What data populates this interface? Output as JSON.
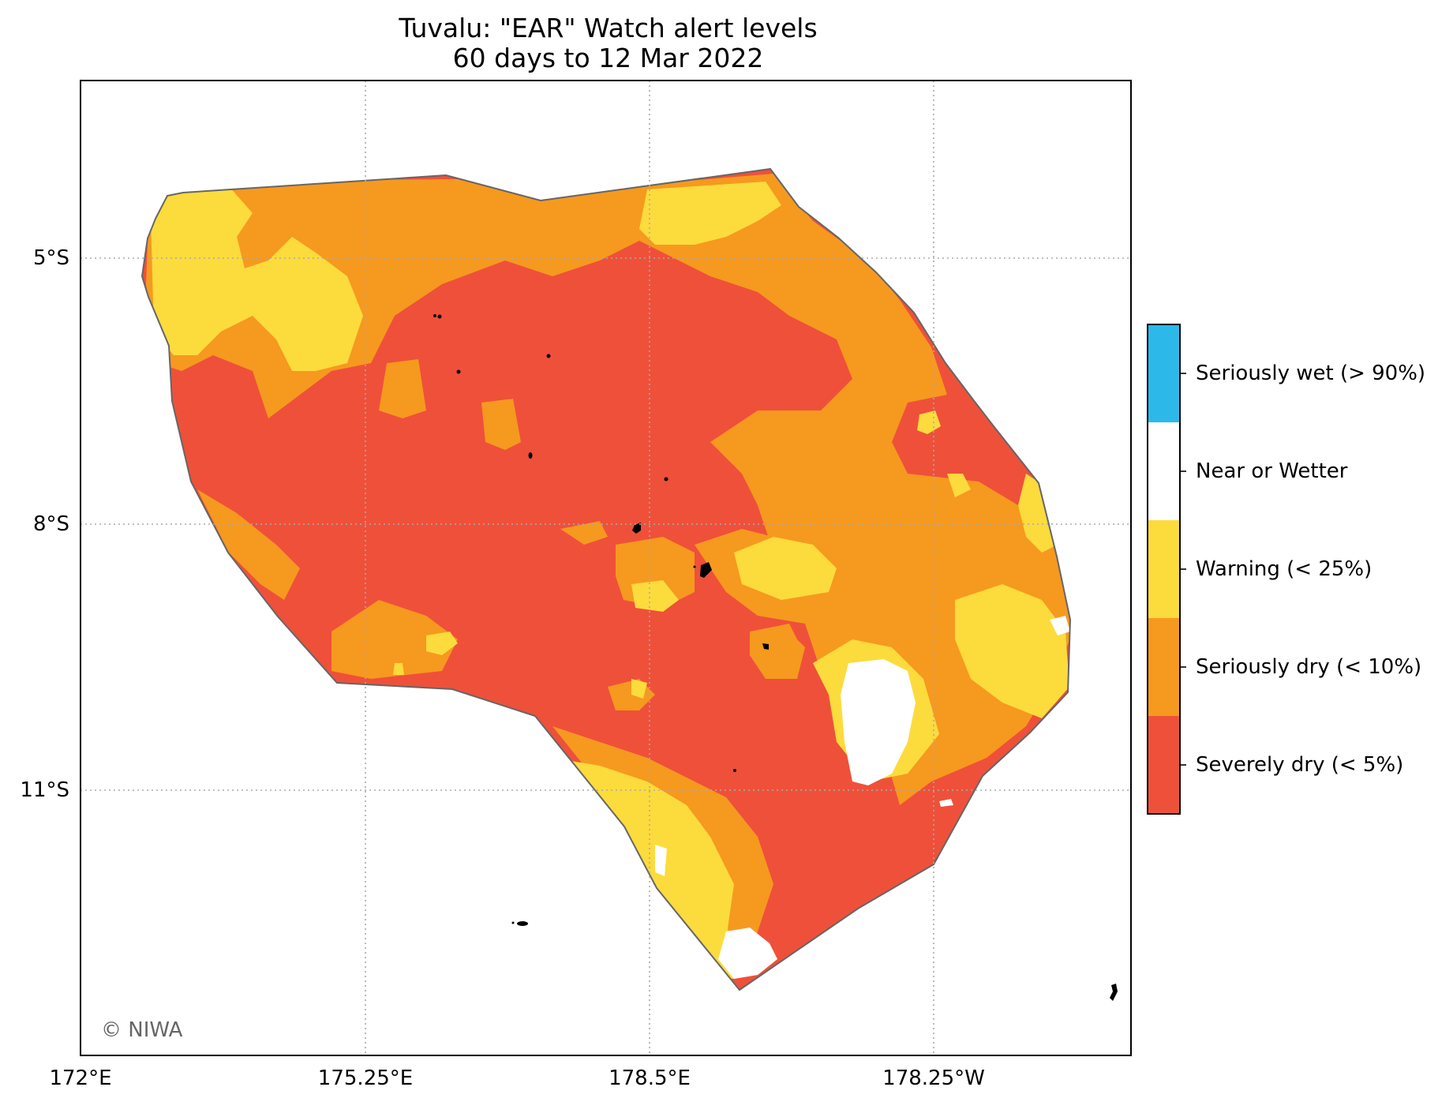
{
  "title": {
    "line1": "Tuvalu: \"EAR\" Watch alert levels",
    "line2": "60 days to 12 Mar 2022"
  },
  "axes": {
    "lat_labels": [
      "5°S",
      "8°S",
      "11°S"
    ],
    "lon_labels": [
      "172°E",
      "175.25°E",
      "178.5°E",
      "178.25°W"
    ],
    "gridlines": true
  },
  "legend": {
    "placement": "right",
    "entries": [
      {
        "label": "Seriously wet (> 90%)",
        "color": "#2db8ea"
      },
      {
        "label": "Near or Wetter",
        "color": "#ffffff"
      },
      {
        "label": "Warning (< 25%)",
        "color": "#fcdb3d"
      },
      {
        "label": "Seriously dry (< 10%)",
        "color": "#f6991f"
      },
      {
        "label": "Severely dry (< 5%)",
        "color": "#ef503a"
      }
    ]
  },
  "credit": "© NIWA",
  "colors": {
    "severely_dry": "#ef503a",
    "seriously_dry": "#f6991f",
    "warning": "#fcdb3d",
    "near_or_wetter": "#ffffff",
    "seriously_wet": "#2db8ea",
    "outline": "#666666",
    "islands": "#000000"
  }
}
